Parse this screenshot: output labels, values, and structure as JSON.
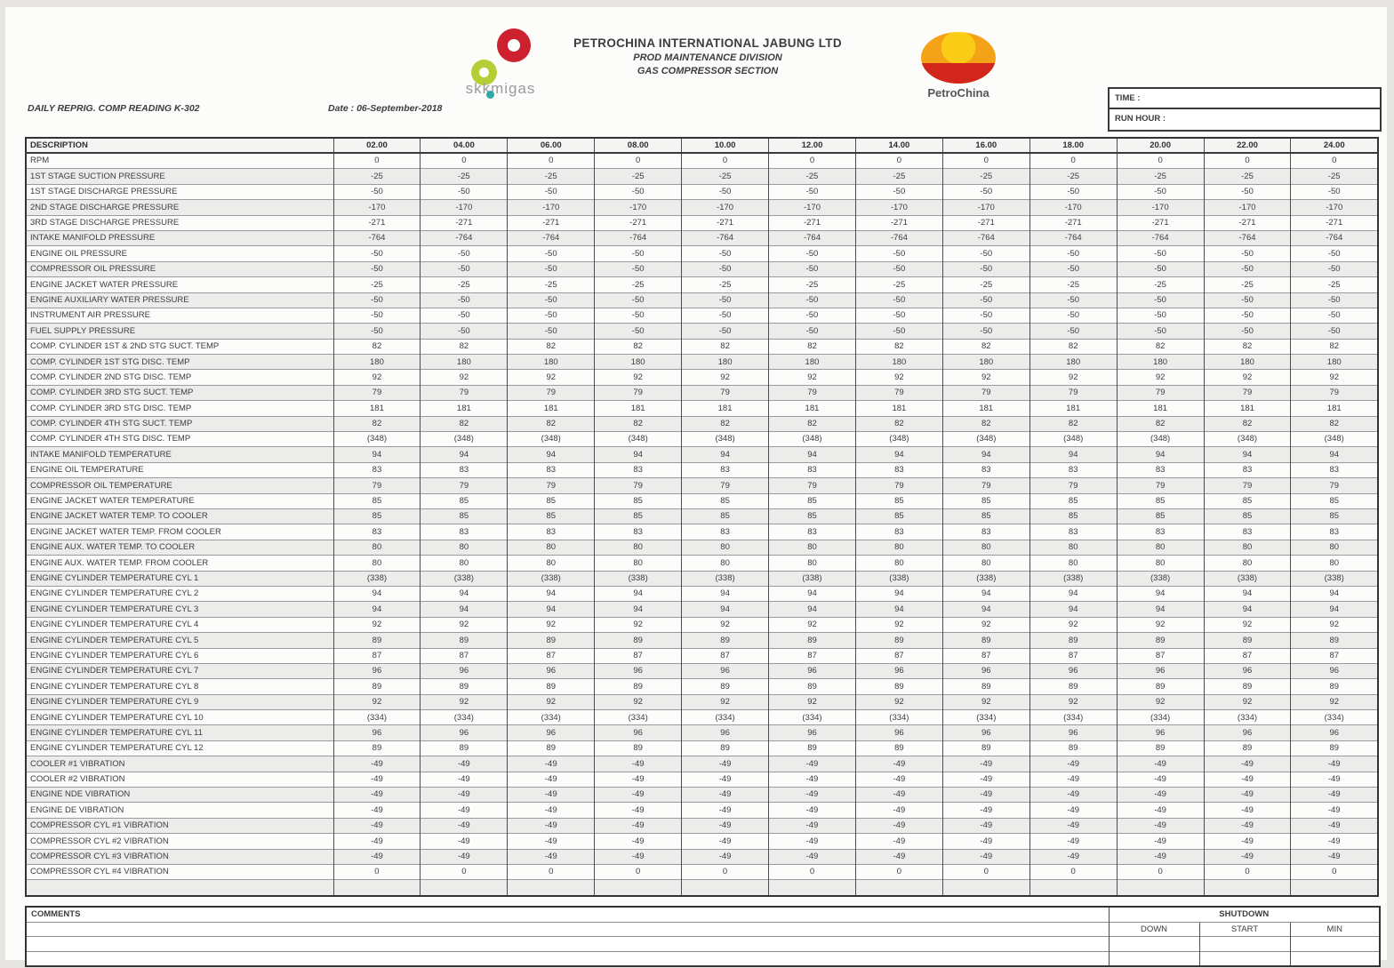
{
  "org": {
    "company": "PETROCHINA INTERNATIONAL JABUNG LTD",
    "division": "PROD MAINTENANCE DIVISION",
    "section": "GAS COMPRESSOR SECTION",
    "skkmigas_wordmark": "skkmigas",
    "petrochina_wordmark": "PetroChina"
  },
  "page": {
    "report_title": "DAILY REPRIG. COMP READING K-302",
    "date_line": "Date : 06-September-2018"
  },
  "meta_box": {
    "time_label": "TIME         :",
    "run_hour_label": "RUN HOUR :"
  },
  "table": {
    "description_header": "DESCRIPTION",
    "time_columns": [
      "02.00",
      "04.00",
      "06.00",
      "08.00",
      "10.00",
      "12.00",
      "14.00",
      "16.00",
      "18.00",
      "20.00",
      "22.00",
      "24.00"
    ],
    "rows": [
      {
        "description": "RPM",
        "value": "0"
      },
      {
        "description": "1ST STAGE SUCTION PRESSURE",
        "value": "-25"
      },
      {
        "description": "1ST STAGE DISCHARGE PRESSURE",
        "value": "-50"
      },
      {
        "description": "2ND STAGE DISCHARGE PRESSURE",
        "value": "-170"
      },
      {
        "description": "3RD STAGE DISCHARGE PRESSURE",
        "value": "-271"
      },
      {
        "description": "INTAKE MANIFOLD PRESSURE",
        "value": "-764"
      },
      {
        "description": "ENGINE OIL PRESSURE",
        "value": "-50"
      },
      {
        "description": "COMPRESSOR OIL PRESSURE",
        "value": "-50"
      },
      {
        "description": "ENGINE JACKET WATER PRESSURE",
        "value": "-25"
      },
      {
        "description": "ENGINE AUXILIARY WATER PRESSURE",
        "value": "-50"
      },
      {
        "description": "INSTRUMENT AIR PRESSURE",
        "value": "-50"
      },
      {
        "description": "FUEL SUPPLY PRESSURE",
        "value": "-50"
      },
      {
        "description": "COMP. CYLINDER 1ST & 2ND STG SUCT. TEMP",
        "value": "82"
      },
      {
        "description": "COMP. CYLINDER 1ST STG DISC. TEMP",
        "value": "180"
      },
      {
        "description": "COMP. CYLINDER 2ND STG DISC. TEMP",
        "value": "92"
      },
      {
        "description": "COMP. CYLINDER 3RD STG SUCT. TEMP",
        "value": "79"
      },
      {
        "description": "COMP. CYLINDER 3RD STG DISC. TEMP",
        "value": "181"
      },
      {
        "description": "COMP. CYLINDER 4TH STG SUCT. TEMP",
        "value": "82"
      },
      {
        "description": "COMP. CYLINDER 4TH STG DISC. TEMP",
        "value": "(348)"
      },
      {
        "description": "INTAKE MANIFOLD TEMPERATURE",
        "value": "94"
      },
      {
        "description": "ENGINE OIL TEMPERATURE",
        "value": "83"
      },
      {
        "description": "COMPRESSOR OIL TEMPERATURE",
        "value": "79"
      },
      {
        "description": "ENGINE JACKET WATER TEMPERATURE",
        "value": "85"
      },
      {
        "description": "ENGINE JACKET WATER TEMP. TO COOLER",
        "value": "85"
      },
      {
        "description": "ENGINE JACKET WATER TEMP. FROM COOLER",
        "value": "83"
      },
      {
        "description": "ENGINE AUX. WATER TEMP. TO COOLER",
        "value": "80"
      },
      {
        "description": "ENGINE AUX. WATER TEMP. FROM COOLER",
        "value": "80"
      },
      {
        "description": "ENGINE CYLINDER TEMPERATURE CYL 1",
        "value": "(338)"
      },
      {
        "description": "ENGINE CYLINDER TEMPERATURE CYL 2",
        "value": "94"
      },
      {
        "description": "ENGINE CYLINDER TEMPERATURE CYL 3",
        "value": "94"
      },
      {
        "description": "ENGINE CYLINDER TEMPERATURE CYL 4",
        "value": "92"
      },
      {
        "description": "ENGINE CYLINDER TEMPERATURE CYL 5",
        "value": "89"
      },
      {
        "description": "ENGINE CYLINDER TEMPERATURE CYL 6",
        "value": "87"
      },
      {
        "description": "ENGINE CYLINDER TEMPERATURE CYL 7",
        "value": "96"
      },
      {
        "description": "ENGINE CYLINDER TEMPERATURE CYL 8",
        "value": "89"
      },
      {
        "description": "ENGINE CYLINDER TEMPERATURE CYL 9",
        "value": "92"
      },
      {
        "description": "ENGINE CYLINDER TEMPERATURE CYL 10",
        "value": "(334)"
      },
      {
        "description": "ENGINE CYLINDER TEMPERATURE CYL 11",
        "value": "96"
      },
      {
        "description": "ENGINE CYLINDER TEMPERATURE CYL 12",
        "value": "89"
      },
      {
        "description": "COOLER #1 VIBRATION",
        "value": "-49"
      },
      {
        "description": "COOLER #2 VIBRATION",
        "value": "-49"
      },
      {
        "description": "ENGINE NDE VIBRATION",
        "value": "-49"
      },
      {
        "description": "ENGINE DE VIBRATION",
        "value": "-49"
      },
      {
        "description": "COMPRESSOR CYL #1 VIBRATION",
        "value": "-49"
      },
      {
        "description": "COMPRESSOR CYL #2 VIBRATION",
        "value": "-49"
      },
      {
        "description": "COMPRESSOR CYL #3 VIBRATION",
        "value": "-49"
      },
      {
        "description": "COMPRESSOR CYL #4 VIBRATION",
        "value": "0"
      },
      {
        "description": "",
        "value": ""
      }
    ]
  },
  "footer": {
    "comments_label": "COMMENTS",
    "shutdown_label": "SHUTDOWN",
    "shutdown_columns": [
      "DOWN",
      "START",
      "MIN"
    ],
    "empty_rows": 2
  },
  "colors": {
    "page_background": "#e7e5e2",
    "paper": "#fcfcfb",
    "border_dark": "#333333",
    "grid_line": "#9b9b9b",
    "text": "#3d3d3d",
    "row_stripe": "#ececea",
    "skkmigas_red": "#ce2130",
    "skkmigas_green": "#b4ce36",
    "skkmigas_teal": "#2fa8a6",
    "petrochina_orange": "#f4a218",
    "petrochina_yellow": "#fccd16",
    "petrochina_red": "#d2261d"
  }
}
